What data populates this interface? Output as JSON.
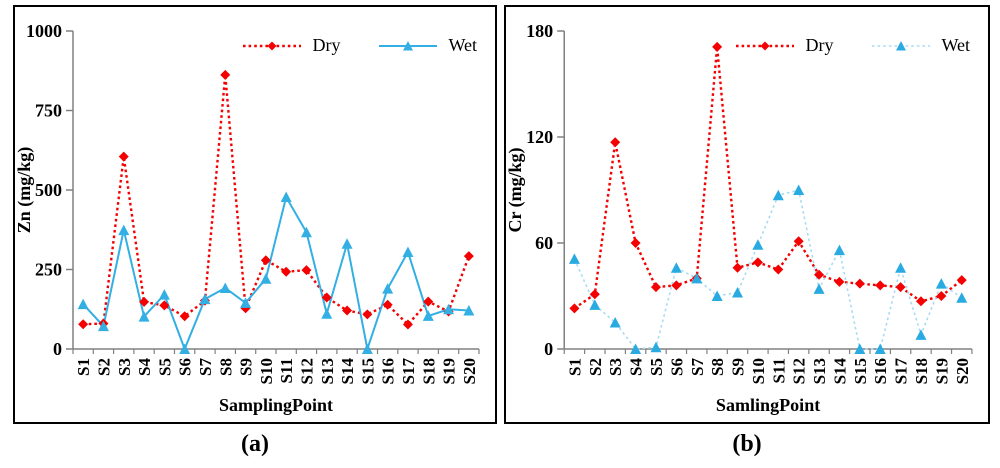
{
  "figure": {
    "caption_a": "(a)",
    "caption_b": "(b)"
  },
  "chart_data": [
    {
      "id": "a",
      "type": "line",
      "title": "",
      "xlabel": "SamplingPoint",
      "ylabel": "Zn (mg/kg)",
      "ylim": [
        0,
        1000
      ],
      "yticks": [
        0,
        250,
        500,
        750,
        1000
      ],
      "grid": false,
      "legend_position": "top-right-inside",
      "categories": [
        "S1",
        "S2",
        "S3",
        "S4",
        "S5",
        "S6",
        "S7",
        "S8",
        "S9",
        "S10",
        "S11",
        "S12",
        "S13",
        "S14",
        "S15",
        "S16",
        "S17",
        "S18",
        "S19",
        "S20"
      ],
      "series": [
        {
          "name": "Dry",
          "color": "#F40000",
          "marker_color": "#F40000",
          "line_style": "dotted",
          "line_width": 2.4,
          "marker": "diamond",
          "values": [
            78,
            80,
            605,
            148,
            137,
            103,
            152,
            862,
            128,
            279,
            243,
            248,
            162,
            121,
            109,
            139,
            77,
            149,
            118,
            292
          ]
        },
        {
          "name": "Wet",
          "color": "#33AFE3",
          "marker_color": "#33AFE3",
          "line_style": "solid",
          "line_width": 2,
          "marker": "triangle",
          "values": [
            141,
            72,
            374,
            102,
            171,
            0,
            157,
            192,
            145,
            221,
            478,
            367,
            111,
            331,
            0,
            190,
            305,
            104,
            125,
            121
          ]
        }
      ]
    },
    {
      "id": "b",
      "type": "line",
      "title": "",
      "xlabel": "SamlingPoint",
      "ylabel": "Cr (mg/kg)",
      "ylim": [
        0,
        180
      ],
      "yticks": [
        0,
        60,
        120,
        180
      ],
      "grid": false,
      "legend_position": "top-right-inside",
      "categories": [
        "S1",
        "S2",
        "S3",
        "S4",
        "S5",
        "S6",
        "S7",
        "S8",
        "S9",
        "S10",
        "S11",
        "S12",
        "S13",
        "S14",
        "S15",
        "S16",
        "S17",
        "S18",
        "S19",
        "S20"
      ],
      "series": [
        {
          "name": "Dry",
          "color": "#F40000",
          "marker_color": "#F40000",
          "line_style": "dotted",
          "line_width": 2.4,
          "marker": "diamond",
          "values": [
            23,
            31,
            117,
            60,
            35,
            36,
            40,
            171,
            46,
            49,
            45,
            61,
            42,
            38,
            37,
            36,
            35,
            27,
            30,
            39
          ]
        },
        {
          "name": "Wet",
          "color": "#A8DBF2",
          "marker_color": "#29ABE2",
          "line_style": "dotted",
          "line_width": 1.6,
          "marker": "triangle",
          "values": [
            51,
            25,
            15,
            0,
            1,
            46,
            40,
            30,
            32,
            59,
            87,
            90,
            34,
            56,
            0,
            0,
            46,
            8,
            37,
            29
          ]
        }
      ]
    }
  ]
}
